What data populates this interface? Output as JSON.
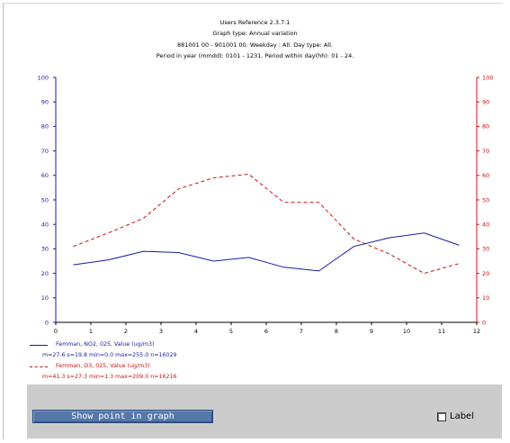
{
  "header": {
    "line1": "Users Reference 2.3.7.1",
    "line2": "Graph type: Annual variation",
    "line3": "881001 00 - 901001 00. Weekday : All. Day type: All.",
    "line4": "Period in year (mmdd): 0101 - 1231. Period within day(hh): 01 - 24."
  },
  "chart_data": {
    "type": "line",
    "x": [
      0.5,
      1.5,
      2.5,
      3.5,
      4.5,
      5.5,
      6.5,
      7.5,
      8.5,
      9.5,
      10.5,
      11.5
    ],
    "xlim": [
      0,
      12
    ],
    "ylim": [
      0,
      100
    ],
    "x_ticks": [
      "0",
      "1",
      "2",
      "3",
      "4",
      "5",
      "6",
      "7",
      "8",
      "9",
      "10",
      "11",
      "12"
    ],
    "y_ticks": [
      "0",
      "10",
      "20",
      "30",
      "40",
      "50",
      "60",
      "70",
      "80",
      "90",
      "100"
    ],
    "grid": false,
    "series": [
      {
        "name": "Femman, NO2, 025, Value (ug/m3)",
        "stats": "m=27.6 s=19.8 min=0.0 max=255.0 n=16029",
        "color": "#1a1aa6",
        "style": "solid",
        "axis": "left",
        "values": [
          23.5,
          25.5,
          29,
          28.5,
          25,
          26.5,
          22.5,
          21,
          31,
          34.5,
          36.5,
          31.5
        ]
      },
      {
        "name": "Femman, O3, 025, Value (ug/m3)",
        "stats": "m=41.3 s=27.3 min=1.3 max=209.0 n=16216",
        "color": "#cc1111",
        "style": "dashed",
        "axis": "right",
        "values": [
          31,
          36.5,
          42.5,
          54.5,
          59,
          60.5,
          49,
          49,
          34,
          28,
          20,
          24
        ]
      }
    ],
    "left_axis_color": "#1a1aa6",
    "right_axis_color": "#cc1111"
  },
  "controls": {
    "show_point_button": "Show point in graph",
    "label_checkbox": "Label",
    "label_checked": false
  }
}
